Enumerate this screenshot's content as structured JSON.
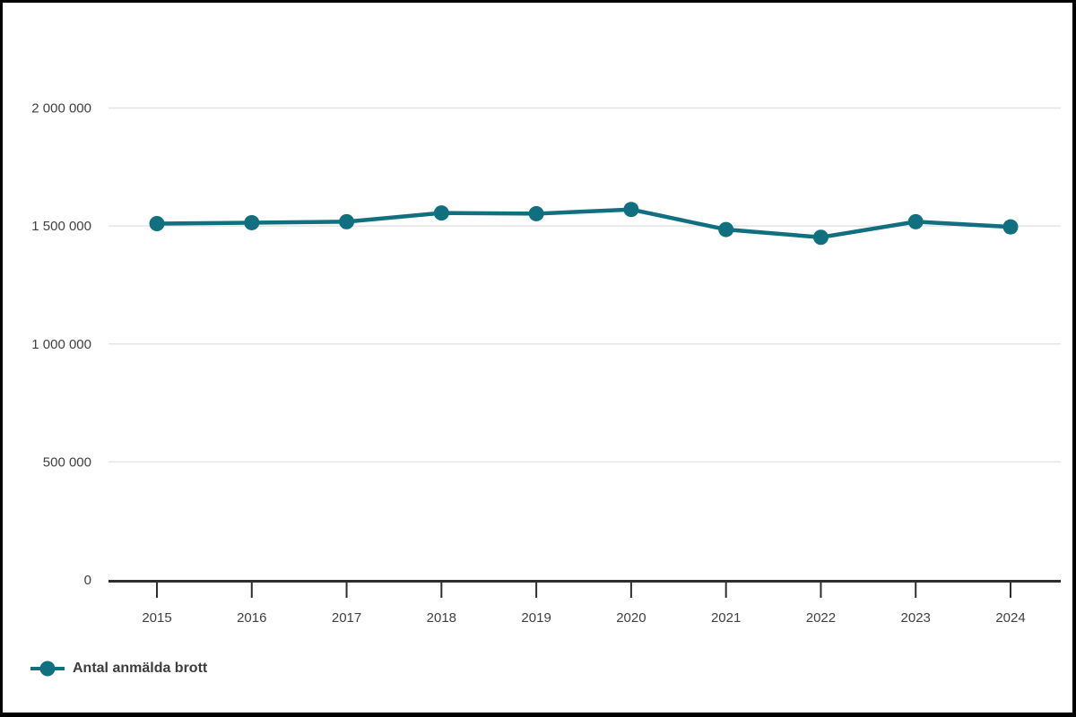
{
  "chart_data": {
    "type": "line",
    "title": "",
    "xlabel": "",
    "ylabel": "",
    "categories": [
      "2015",
      "2016",
      "2017",
      "2018",
      "2019",
      "2020",
      "2021",
      "2022",
      "2023",
      "2024"
    ],
    "series": [
      {
        "name": "Antal anmälda brott",
        "color": "#10707F",
        "values": [
          1510000,
          1514000,
          1518000,
          1555000,
          1552000,
          1570000,
          1485000,
          1452000,
          1518000,
          1496000
        ]
      }
    ],
    "ylim": [
      0,
      2000000
    ],
    "yticks": [
      0,
      500000,
      1000000,
      1500000,
      2000000
    ],
    "ytick_labels": [
      "0",
      "500 000",
      "1 000 000",
      "1 500 000",
      "2 000 000"
    ],
    "grid": "horizontal",
    "legend_position": "bottom-left",
    "colors": {
      "series": "#10707F",
      "gridline": "#e5e5e5",
      "axis": "#2e2e2e",
      "tick_label": "#404040",
      "legend_text": "#3c3c3c",
      "background": "#ffffff",
      "frame_border": "#000000"
    }
  },
  "legend": {
    "label": "Antal anmälda brott"
  }
}
